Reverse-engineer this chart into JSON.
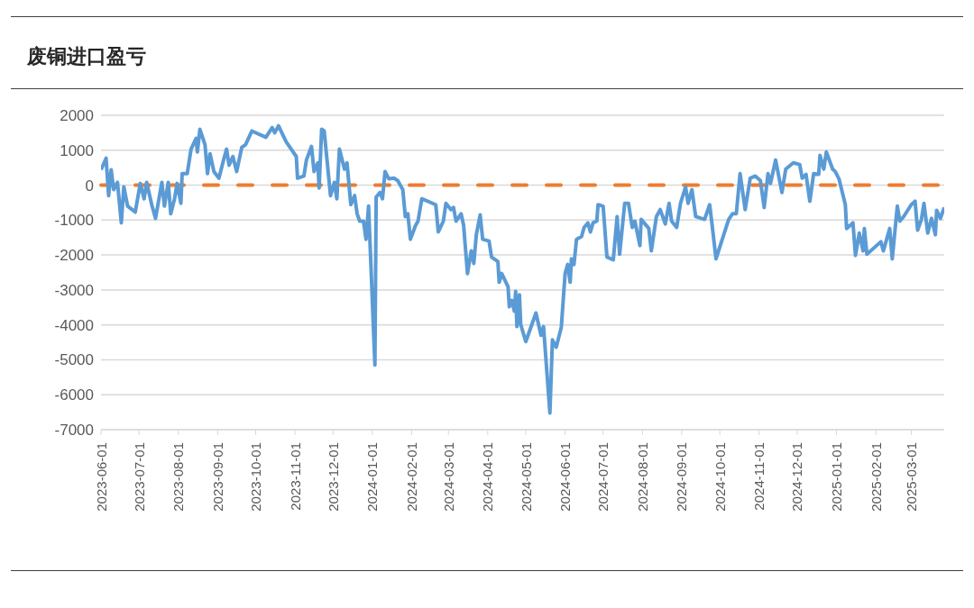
{
  "chart_data": {
    "type": "line",
    "title": "废铜进口盈亏",
    "x": [
      "2023-06-01",
      "2023-06-05",
      "2023-06-07",
      "2023-06-09",
      "2023-06-11",
      "2023-06-14",
      "2023-06-17",
      "2023-06-19",
      "2023-06-22",
      "2023-06-28",
      "2023-07-02",
      "2023-07-05",
      "2023-07-07",
      "2023-07-11",
      "2023-07-14",
      "2023-07-19",
      "2023-07-21",
      "2023-07-24",
      "2023-07-26",
      "2023-07-29",
      "2023-07-31",
      "2023-08-03",
      "2023-08-04",
      "2023-08-08",
      "2023-08-11",
      "2023-08-15",
      "2023-08-16",
      "2023-08-18",
      "2023-08-22",
      "2023-08-24",
      "2023-08-26",
      "2023-08-29",
      "2023-09-02",
      "2023-09-06",
      "2023-09-08",
      "2023-09-10",
      "2023-09-13",
      "2023-09-16",
      "2023-09-20",
      "2023-09-23",
      "2023-09-28",
      "2023-10-09",
      "2023-10-14",
      "2023-10-16",
      "2023-10-19",
      "2023-10-22",
      "2023-10-25",
      "2023-10-29",
      "2023-11-02",
      "2023-11-03",
      "2023-11-08",
      "2023-11-10",
      "2023-11-14",
      "2023-11-16",
      "2023-11-19",
      "2023-11-20",
      "2023-11-22",
      "2023-11-24",
      "2023-11-29",
      "2023-12-02",
      "2023-12-04",
      "2023-12-06",
      "2023-12-10",
      "2023-12-12",
      "2023-12-15",
      "2023-12-18",
      "2023-12-20",
      "2023-12-22",
      "2023-12-25",
      "2023-12-27",
      "2023-12-29",
      "2024-01-03",
      "2024-01-04",
      "2024-01-07",
      "2024-01-09",
      "2024-01-11",
      "2024-01-14",
      "2024-01-18",
      "2024-01-21",
      "2024-01-25",
      "2024-01-27",
      "2024-01-29",
      "2024-01-31",
      "2024-02-04",
      "2024-02-06",
      "2024-02-09",
      "2024-02-20",
      "2024-02-22",
      "2024-02-26",
      "2024-02-28",
      "2024-03-03",
      "2024-03-05",
      "2024-03-07",
      "2024-03-11",
      "2024-03-13",
      "2024-03-16",
      "2024-03-19",
      "2024-03-21",
      "2024-03-23",
      "2024-03-26",
      "2024-03-28",
      "2024-04-02",
      "2024-04-04",
      "2024-04-09",
      "2024-04-10",
      "2024-04-12",
      "2024-04-17",
      "2024-04-18",
      "2024-04-20",
      "2024-04-22",
      "2024-04-23",
      "2024-04-24",
      "2024-04-26",
      "2024-04-27",
      "2024-05-01",
      "2024-05-09",
      "2024-05-13",
      "2024-05-15",
      "2024-05-20",
      "2024-05-22",
      "2024-05-25",
      "2024-05-29",
      "2024-06-01",
      "2024-06-03",
      "2024-06-05",
      "2024-06-06",
      "2024-06-08",
      "2024-06-10",
      "2024-06-14",
      "2024-06-16",
      "2024-06-19",
      "2024-06-21",
      "2024-06-23",
      "2024-06-26",
      "2024-06-27",
      "2024-07-01",
      "2024-07-04",
      "2024-07-09",
      "2024-07-10",
      "2024-07-12",
      "2024-07-14",
      "2024-07-18",
      "2024-07-21",
      "2024-07-24",
      "2024-07-26",
      "2024-07-30",
      "2024-07-31",
      "2024-08-03",
      "2024-08-06",
      "2024-08-08",
      "2024-08-12",
      "2024-08-15",
      "2024-08-19",
      "2024-08-22",
      "2024-08-24",
      "2024-08-28",
      "2024-08-31",
      "2024-09-04",
      "2024-09-06",
      "2024-09-09",
      "2024-09-12",
      "2024-09-19",
      "2024-09-23",
      "2024-09-25",
      "2024-09-28",
      "2024-10-08",
      "2024-10-11",
      "2024-10-14",
      "2024-10-17",
      "2024-10-21",
      "2024-10-25",
      "2024-10-29",
      "2024-11-02",
      "2024-11-05",
      "2024-11-08",
      "2024-11-10",
      "2024-11-14",
      "2024-11-19",
      "2024-11-22",
      "2024-11-28",
      "2024-12-03",
      "2024-12-05",
      "2024-12-08",
      "2024-12-11",
      "2024-12-14",
      "2024-12-18",
      "2024-12-19",
      "2024-12-22",
      "2024-12-24",
      "2024-12-29",
      "2024-12-31",
      "2025-01-03",
      "2025-01-08",
      "2025-01-09",
      "2025-01-14",
      "2025-01-16",
      "2025-01-19",
      "2025-01-22",
      "2025-01-23",
      "2025-01-25",
      "2025-02-05",
      "2025-02-07",
      "2025-02-12",
      "2025-02-14",
      "2025-02-18",
      "2025-02-20",
      "2025-02-23",
      "2025-03-01",
      "2025-03-04",
      "2025-03-06",
      "2025-03-09",
      "2025-03-11",
      "2025-03-14",
      "2025-03-17",
      "2025-03-20",
      "2025-03-21",
      "2025-03-24",
      "2025-03-27"
    ],
    "series": [
      {
        "color": "#5b9bd5",
        "values": [
          440,
          770,
          -300,
          440,
          -130,
          80,
          -1080,
          -50,
          -600,
          -770,
          50,
          -390,
          80,
          -560,
          -950,
          80,
          -600,
          80,
          -820,
          -390,
          50,
          -520,
          330,
          330,
          1030,
          1340,
          950,
          1600,
          1160,
          330,
          900,
          390,
          200,
          770,
          1030,
          570,
          820,
          390,
          1080,
          1160,
          1550,
          1370,
          1650,
          1500,
          1700,
          1470,
          1240,
          1030,
          820,
          200,
          260,
          720,
          1110,
          390,
          640,
          -80,
          1600,
          1550,
          -300,
          80,
          -390,
          1030,
          460,
          640,
          -560,
          -300,
          -820,
          -1030,
          -1030,
          -1550,
          -600,
          -5150,
          -340,
          -210,
          -390,
          390,
          180,
          200,
          130,
          -130,
          -900,
          -820,
          -1550,
          -1160,
          -1030,
          -390,
          -560,
          -1340,
          -1030,
          -520,
          -700,
          -640,
          -1030,
          -820,
          -1160,
          -2530,
          -1880,
          -2240,
          -1420,
          -850,
          -1550,
          -1600,
          -2060,
          -2190,
          -2780,
          -2530,
          -2910,
          -3480,
          -3300,
          -3610,
          -3040,
          -4050,
          -3140,
          -3990,
          -4480,
          -3660,
          -4300,
          -4050,
          -6520,
          -4430,
          -4640,
          -4070,
          -2530,
          -2270,
          -2780,
          -2110,
          -2270,
          -1550,
          -1470,
          -1210,
          -1080,
          -1340,
          -1080,
          -1030,
          -560,
          -600,
          -2060,
          -2140,
          -1730,
          -900,
          -1980,
          -520,
          -520,
          -1210,
          -1030,
          -1730,
          -980,
          -1110,
          -1240,
          -1880,
          -900,
          -700,
          -1110,
          -520,
          -1030,
          -1210,
          -520,
          -50,
          -520,
          -130,
          -900,
          -980,
          -560,
          -1160,
          -2110,
          -980,
          -820,
          -820,
          330,
          -700,
          200,
          260,
          130,
          -640,
          330,
          50,
          720,
          -210,
          460,
          640,
          590,
          200,
          310,
          -460,
          330,
          310,
          850,
          460,
          950,
          460,
          390,
          180,
          -560,
          -1240,
          -1080,
          -2010,
          -1370,
          -1880,
          -1240,
          -1980,
          -1620,
          -1880,
          -1240,
          -2110,
          -600,
          -1030,
          -900,
          -560,
          -460,
          -1290,
          -980,
          -520,
          -1370,
          -950,
          -1420,
          -720,
          -950,
          -640
        ]
      }
    ],
    "xlim": [
      "2023-06-01",
      "2025-03-27"
    ],
    "xticks": [
      "2023-06-01",
      "2023-07-01",
      "2023-08-01",
      "2023-09-01",
      "2023-10-01",
      "2023-11-01",
      "2023-12-01",
      "2024-01-01",
      "2024-02-01",
      "2024-03-01",
      "2024-04-01",
      "2024-05-01",
      "2024-06-01",
      "2024-07-01",
      "2024-08-01",
      "2024-09-01",
      "2024-10-01",
      "2024-11-01",
      "2024-12-01",
      "2025-01-01",
      "2025-02-01",
      "2025-03-01"
    ],
    "ylim": [
      -7000,
      2000
    ],
    "yticks": [
      -7000,
      -6000,
      -5000,
      -4000,
      -3000,
      -2000,
      -1000,
      0,
      1000,
      2000
    ],
    "ref_lines": [
      {
        "axis": "y",
        "value": 0,
        "color": "#ed7d31",
        "line_style": "dashed"
      }
    ],
    "grid": "y",
    "marker": "none"
  }
}
